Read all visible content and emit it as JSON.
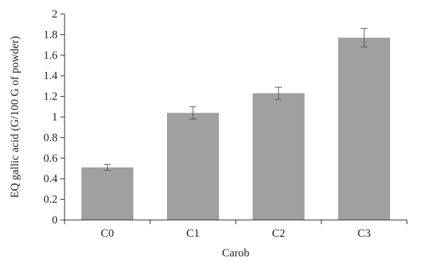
{
  "chart_data": {
    "type": "bar",
    "xlabel": "Carob",
    "ylabel": "EQ gallic acid (G/100 G of powder)",
    "categories": [
      "C0",
      "C1",
      "C2",
      "C3"
    ],
    "values": [
      0.51,
      1.04,
      1.23,
      1.77
    ],
    "errors": [
      0.03,
      0.06,
      0.06,
      0.09
    ],
    "ylim": [
      0,
      2
    ],
    "yticks": [
      0,
      0.2,
      0.4,
      0.6,
      0.8,
      1,
      1.2,
      1.4,
      1.6,
      1.8,
      2
    ],
    "ytick_labels": [
      "0",
      "0.2",
      "0.4",
      "0.6",
      "0.8",
      "1",
      "1.2",
      "1.4",
      "1.6",
      "1.8",
      "2"
    ],
    "bar_color": "#a0a0a2",
    "error_color": "#555555",
    "axis_color": "#222222",
    "grid": false,
    "legend": "none"
  }
}
